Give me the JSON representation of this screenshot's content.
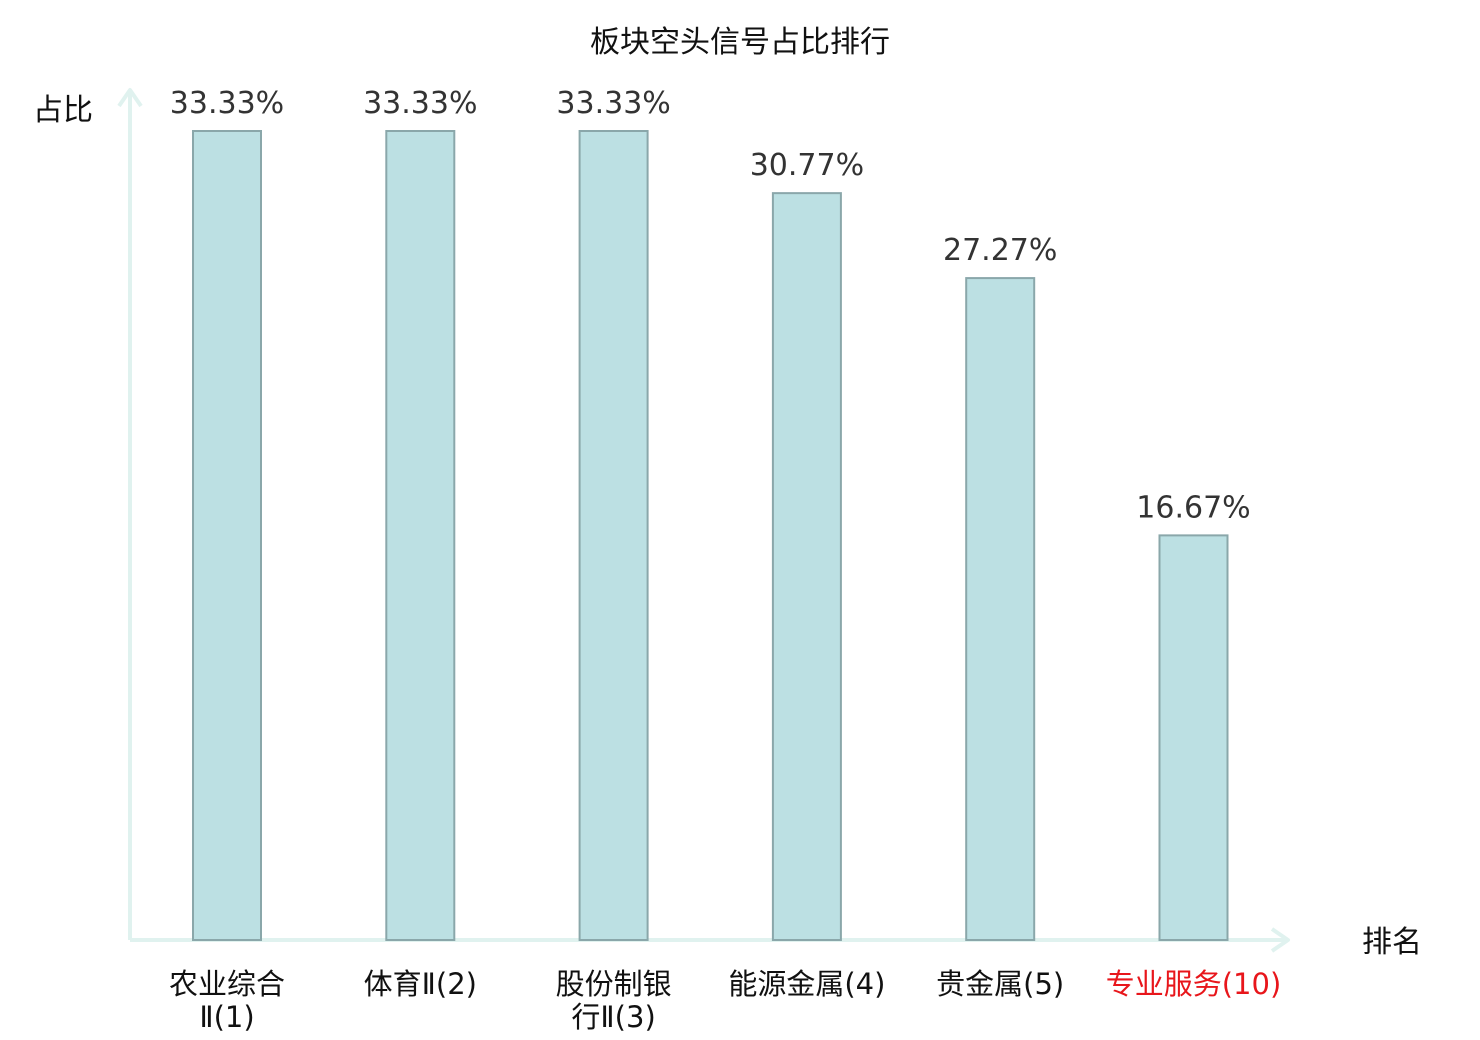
{
  "chart_data": {
    "type": "bar",
    "title": "板块空头信号占比排行",
    "ylabel": "占比",
    "xlabel": "排名",
    "ylim": [
      0,
      35
    ],
    "categories": [
      {
        "lines": [
          "农业综合",
          "Ⅱ(1)"
        ],
        "highlight": false
      },
      {
        "lines": [
          "体育Ⅱ(2)"
        ],
        "highlight": false
      },
      {
        "lines": [
          "股份制银",
          "行Ⅱ(3)"
        ],
        "highlight": false
      },
      {
        "lines": [
          "能源金属(4)"
        ],
        "highlight": false
      },
      {
        "lines": [
          "贵金属(5)"
        ],
        "highlight": false
      },
      {
        "lines": [
          "专业服务(10)"
        ],
        "highlight": true
      }
    ],
    "values": [
      33.33,
      33.33,
      33.33,
      30.77,
      27.27,
      16.67
    ],
    "value_labels": [
      "33.33%",
      "33.33%",
      "33.33%",
      "30.77%",
      "27.27%",
      "16.67%"
    ],
    "grid": false,
    "colors": {
      "bar_fill": "#bce0e3",
      "bar_stroke": "#8aa7aa",
      "axis": "#e0f2ef",
      "highlight_text": "#e8161b",
      "normal_text": "#111111"
    }
  }
}
